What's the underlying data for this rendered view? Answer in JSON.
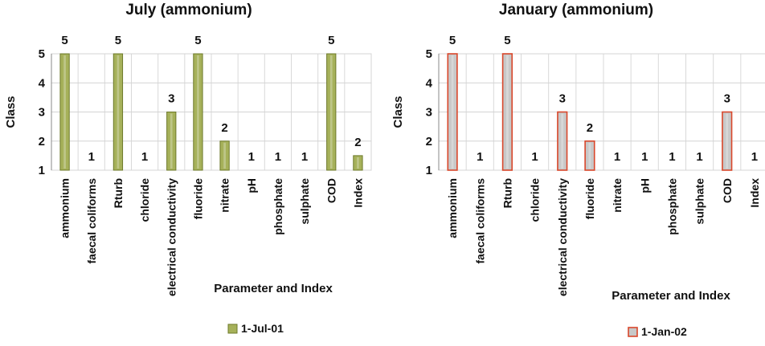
{
  "chart_data": [
    {
      "type": "bar",
      "title": "July (ammonium)",
      "xlabel": "Parameter and Index",
      "ylabel": "Class",
      "ylim": [
        1,
        5
      ],
      "yticks": [
        1,
        2,
        3,
        4,
        5
      ],
      "grid": true,
      "legend_position": "bottom",
      "categories": [
        "ammonium",
        "faecal coliforms",
        "Rturb",
        "chloride",
        "electrical conductivity",
        "fluoride",
        "nitrate",
        "pH",
        "phosphate",
        "sulphate",
        "COD",
        "Index"
      ],
      "series": [
        {
          "name": "1-Jul-01",
          "values": [
            5,
            1,
            5,
            1,
            3,
            5,
            2,
            1,
            1,
            1,
            5,
            1.5
          ],
          "data_labels": [
            "5",
            "1",
            "5",
            "1",
            "3",
            "5",
            "2",
            "1",
            "1",
            "1",
            "5",
            "2"
          ],
          "fill": "#a6b15a",
          "stroke": "#6d7a2a"
        }
      ]
    },
    {
      "type": "bar",
      "title": "January (ammonium)",
      "xlabel": "Parameter and Index",
      "ylabel": "Class",
      "ylim": [
        1,
        5
      ],
      "yticks": [
        1,
        2,
        3,
        4,
        5
      ],
      "grid": true,
      "legend_position": "bottom",
      "categories": [
        "ammonium",
        "faecal coliforms",
        "Rturb",
        "chloride",
        "electrical conductivity",
        "fluoride",
        "nitrate",
        "pH",
        "phosphate",
        "sulphate",
        "COD",
        "Index"
      ],
      "series": [
        {
          "name": "1-Jan-02",
          "values": [
            5,
            1,
            5,
            1,
            3,
            2,
            1,
            1,
            1,
            1,
            3,
            1
          ],
          "data_labels": [
            "5",
            "1",
            "5",
            "1",
            "3",
            "2",
            "1",
            "1",
            "1",
            "1",
            "3",
            "1"
          ],
          "fill": "#c8c8c8",
          "stroke": "#d9472b"
        }
      ]
    }
  ]
}
